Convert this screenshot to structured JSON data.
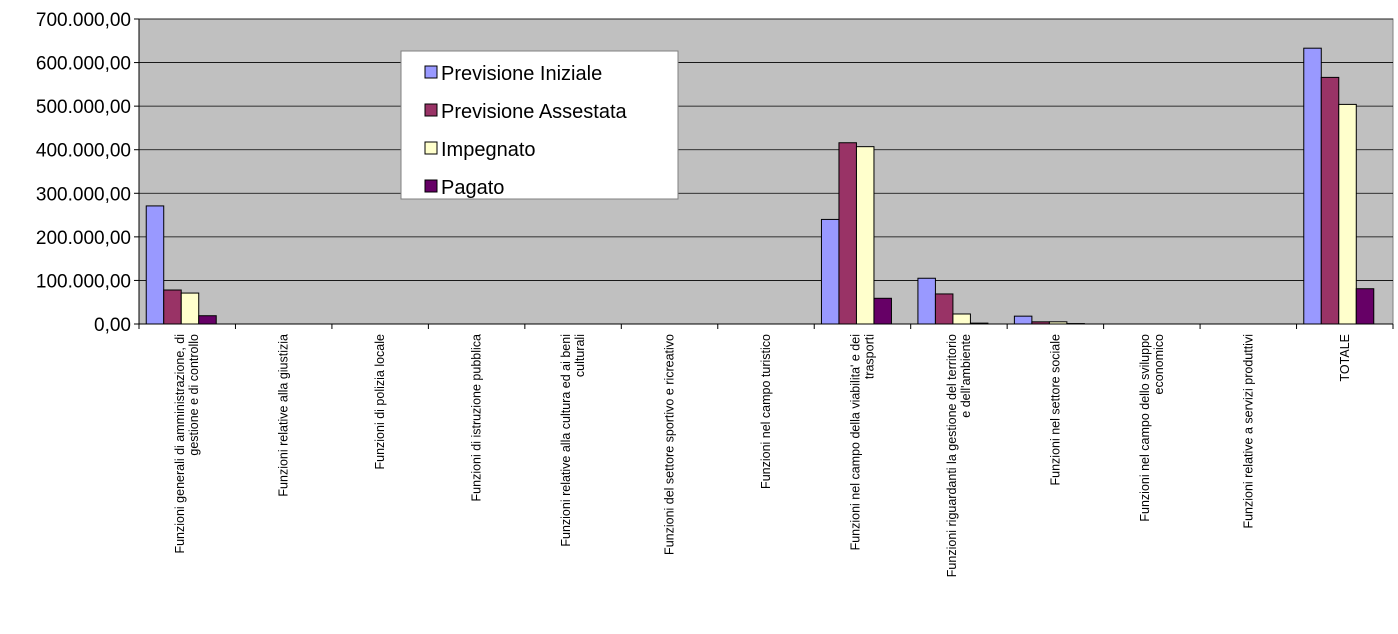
{
  "chart_data": {
    "type": "bar",
    "title": "",
    "xlabel": "",
    "ylabel": "",
    "ylim": [
      0,
      700000
    ],
    "ytick_values": [
      0,
      100000,
      200000,
      300000,
      400000,
      500000,
      600000,
      700000
    ],
    "ytick_labels": [
      "0,00",
      "100.000,00",
      "200.000,00",
      "300.000,00",
      "400.000,00",
      "500.000,00",
      "600.000,00",
      "700.000,00"
    ],
    "grid": true,
    "legend_position": "top-center",
    "categories": [
      [
        "Funzioni generali di amministrazione, di",
        "gestione e di controllo"
      ],
      [
        "Funzioni relative alla giustizia"
      ],
      [
        "Funzioni di polizia locale"
      ],
      [
        "Funzioni di istruzione pubblica"
      ],
      [
        "Funzioni relative alla cultura ed ai beni",
        "culturali"
      ],
      [
        "Funzioni del settore sportivo e ricreativo"
      ],
      [
        "Funzioni nel campo turistico"
      ],
      [
        "Funzioni nel campo della viabilita' e dei",
        "trasporti"
      ],
      [
        "Funzioni riguardanti la gestione del territorio",
        "e dell'ambiente"
      ],
      [
        "Funzioni nel settore sociale"
      ],
      [
        "Funzioni nel campo dello sviluppo",
        "economico"
      ],
      [
        "Funzioni relative a servizi produttivi"
      ],
      [
        "TOTALE"
      ]
    ],
    "series": [
      {
        "name": "Previsione Iniziale",
        "color": "#9999ff",
        "values": [
          271000,
          0,
          0,
          0,
          0,
          0,
          0,
          240000,
          105000,
          18000,
          0,
          0,
          633000
        ]
      },
      {
        "name": "Previsione Assestata",
        "color": "#993366",
        "values": [
          78000,
          0,
          0,
          0,
          0,
          0,
          0,
          416000,
          69000,
          5000,
          0,
          0,
          566000
        ]
      },
      {
        "name": "Impegnato",
        "color": "#ffffcc",
        "values": [
          71000,
          0,
          0,
          0,
          0,
          0,
          0,
          407000,
          23000,
          5000,
          0,
          0,
          504000
        ]
      },
      {
        "name": "Pagato",
        "color": "#660066",
        "values": [
          19000,
          0,
          0,
          0,
          0,
          0,
          0,
          59000,
          2000,
          1000,
          0,
          0,
          81000
        ]
      }
    ],
    "plot_background": "#c0c0c0"
  }
}
